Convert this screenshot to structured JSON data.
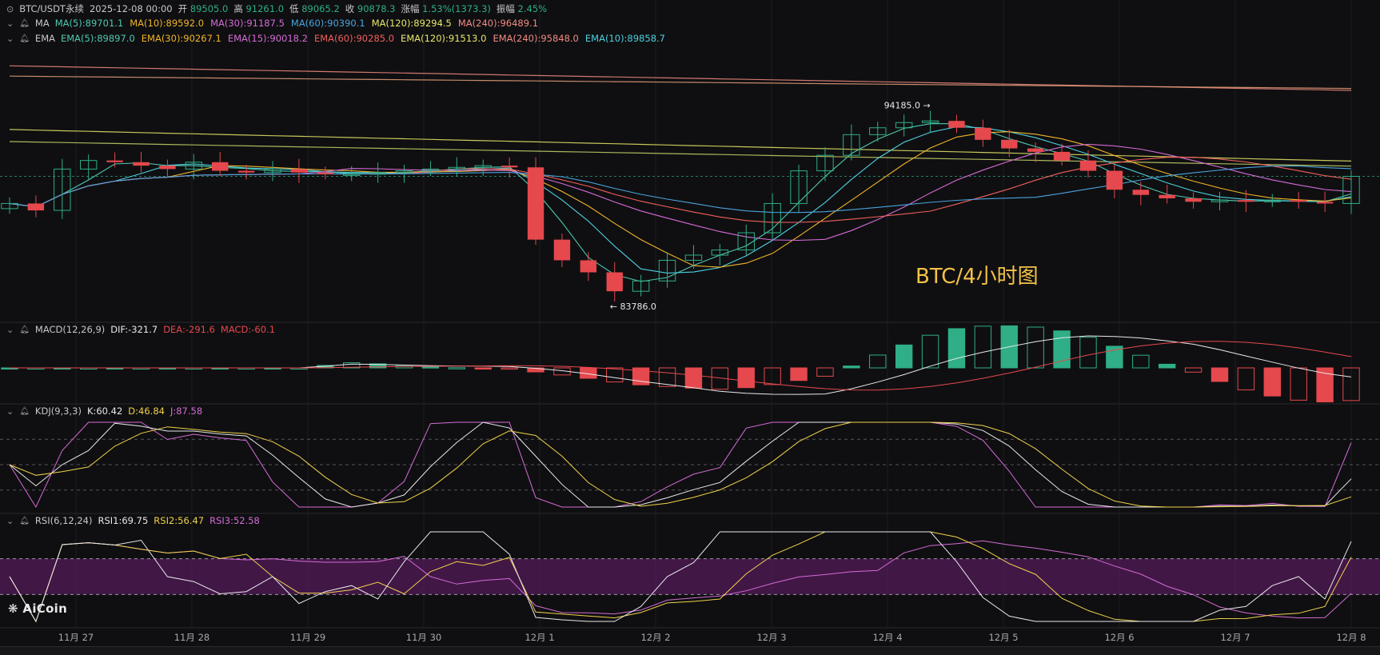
{
  "header": {
    "symbol": "BTC/USDT永续",
    "datetime": "2025-12-08 00:00",
    "open_label": "开",
    "open": "89505.0",
    "high_label": "高",
    "high": "91261.0",
    "low_label": "低",
    "low": "89065.2",
    "close_label": "收",
    "close": "90878.3",
    "change_label": "涨幅",
    "change": "1.53%(1373.3)",
    "amp_label": "振幅",
    "amp": "2.45%"
  },
  "ma_legend": {
    "name": "MA",
    "items": [
      {
        "text": "MA(5):89701.1",
        "color": "#4ec9b0"
      },
      {
        "text": "MA(10):89592.0",
        "color": "#f0b429"
      },
      {
        "text": "MA(30):91187.5",
        "color": "#d46bd6"
      },
      {
        "text": "MA(60):90390.1",
        "color": "#4aa3df"
      },
      {
        "text": "MA(120):89294.5",
        "color": "#e8e86a"
      },
      {
        "text": "MA(240):96489.1",
        "color": "#f28b82"
      }
    ]
  },
  "ema_legend": {
    "name": "EMA",
    "items": [
      {
        "text": "EMA(5):89897.0",
        "color": "#4ec9b0"
      },
      {
        "text": "EMA(30):90267.1",
        "color": "#f0b429"
      },
      {
        "text": "EMA(15):90018.2",
        "color": "#d46bd6"
      },
      {
        "text": "EMA(60):90285.0",
        "color": "#f25f5c"
      },
      {
        "text": "EMA(120):91513.0",
        "color": "#e8e86a"
      },
      {
        "text": "EMA(240):95848.0",
        "color": "#f28b82"
      },
      {
        "text": "EMA(10):89858.7",
        "color": "#4dd0e1"
      }
    ]
  },
  "macd_legend": {
    "name": "MACD(12,26,9)",
    "dif": "DIF:-321.7",
    "dea": "DEA:-291.6",
    "macd": "MACD:-60.1"
  },
  "kdj_legend": {
    "name": "KDJ(9,3,3)",
    "k": "K:60.42",
    "d": "D:46.84",
    "j": "J:87.58"
  },
  "rsi_legend": {
    "name": "RSI(6,12,24)",
    "rsi1": "RSI1:69.75",
    "rsi2": "RSI2:56.47",
    "rsi3": "RSI3:52.58"
  },
  "annotations": {
    "high_marker": "94185.0",
    "low_marker": "83786.0",
    "chart_note": "BTC/4小时图"
  },
  "brand": "AiCoin",
  "colors": {
    "up": "#2fae87",
    "down": "#e5484d",
    "background": "#0f0f11"
  },
  "chart_data": {
    "type": "candlestick",
    "timeframe": "4h",
    "x_ticks": [
      "11月 27",
      "11月 28",
      "11月 29",
      "11月 30",
      "12月 1",
      "12月 2",
      "12月 3",
      "12月 4",
      "12月 5",
      "12月 6",
      "12月 7",
      "12月 8"
    ],
    "high_label": "94185.0",
    "low_label": "83786.0",
    "close_path": [
      89300,
      88900,
      91300,
      91800,
      91700,
      91500,
      91300,
      91700,
      91200,
      91100,
      91300,
      91100,
      91000,
      91000,
      91100,
      91200,
      91300,
      91400,
      91500,
      91400,
      87200,
      86000,
      85300,
      84200,
      84800,
      86000,
      86300,
      86600,
      87600,
      89300,
      91200,
      92100,
      93300,
      93700,
      94000,
      94100,
      93700,
      93000,
      92500,
      92300,
      91800,
      91200,
      90100,
      89800,
      89600,
      89400,
      89500,
      89400,
      89500,
      89400,
      89300,
      90878
    ],
    "panels": [
      "price",
      "MACD(12,26,9)",
      "KDJ(9,3,3)",
      "RSI(6,12,24)"
    ],
    "kdj_guides": [
      80,
      50,
      20
    ],
    "rsi_band": [
      30,
      70
    ]
  }
}
